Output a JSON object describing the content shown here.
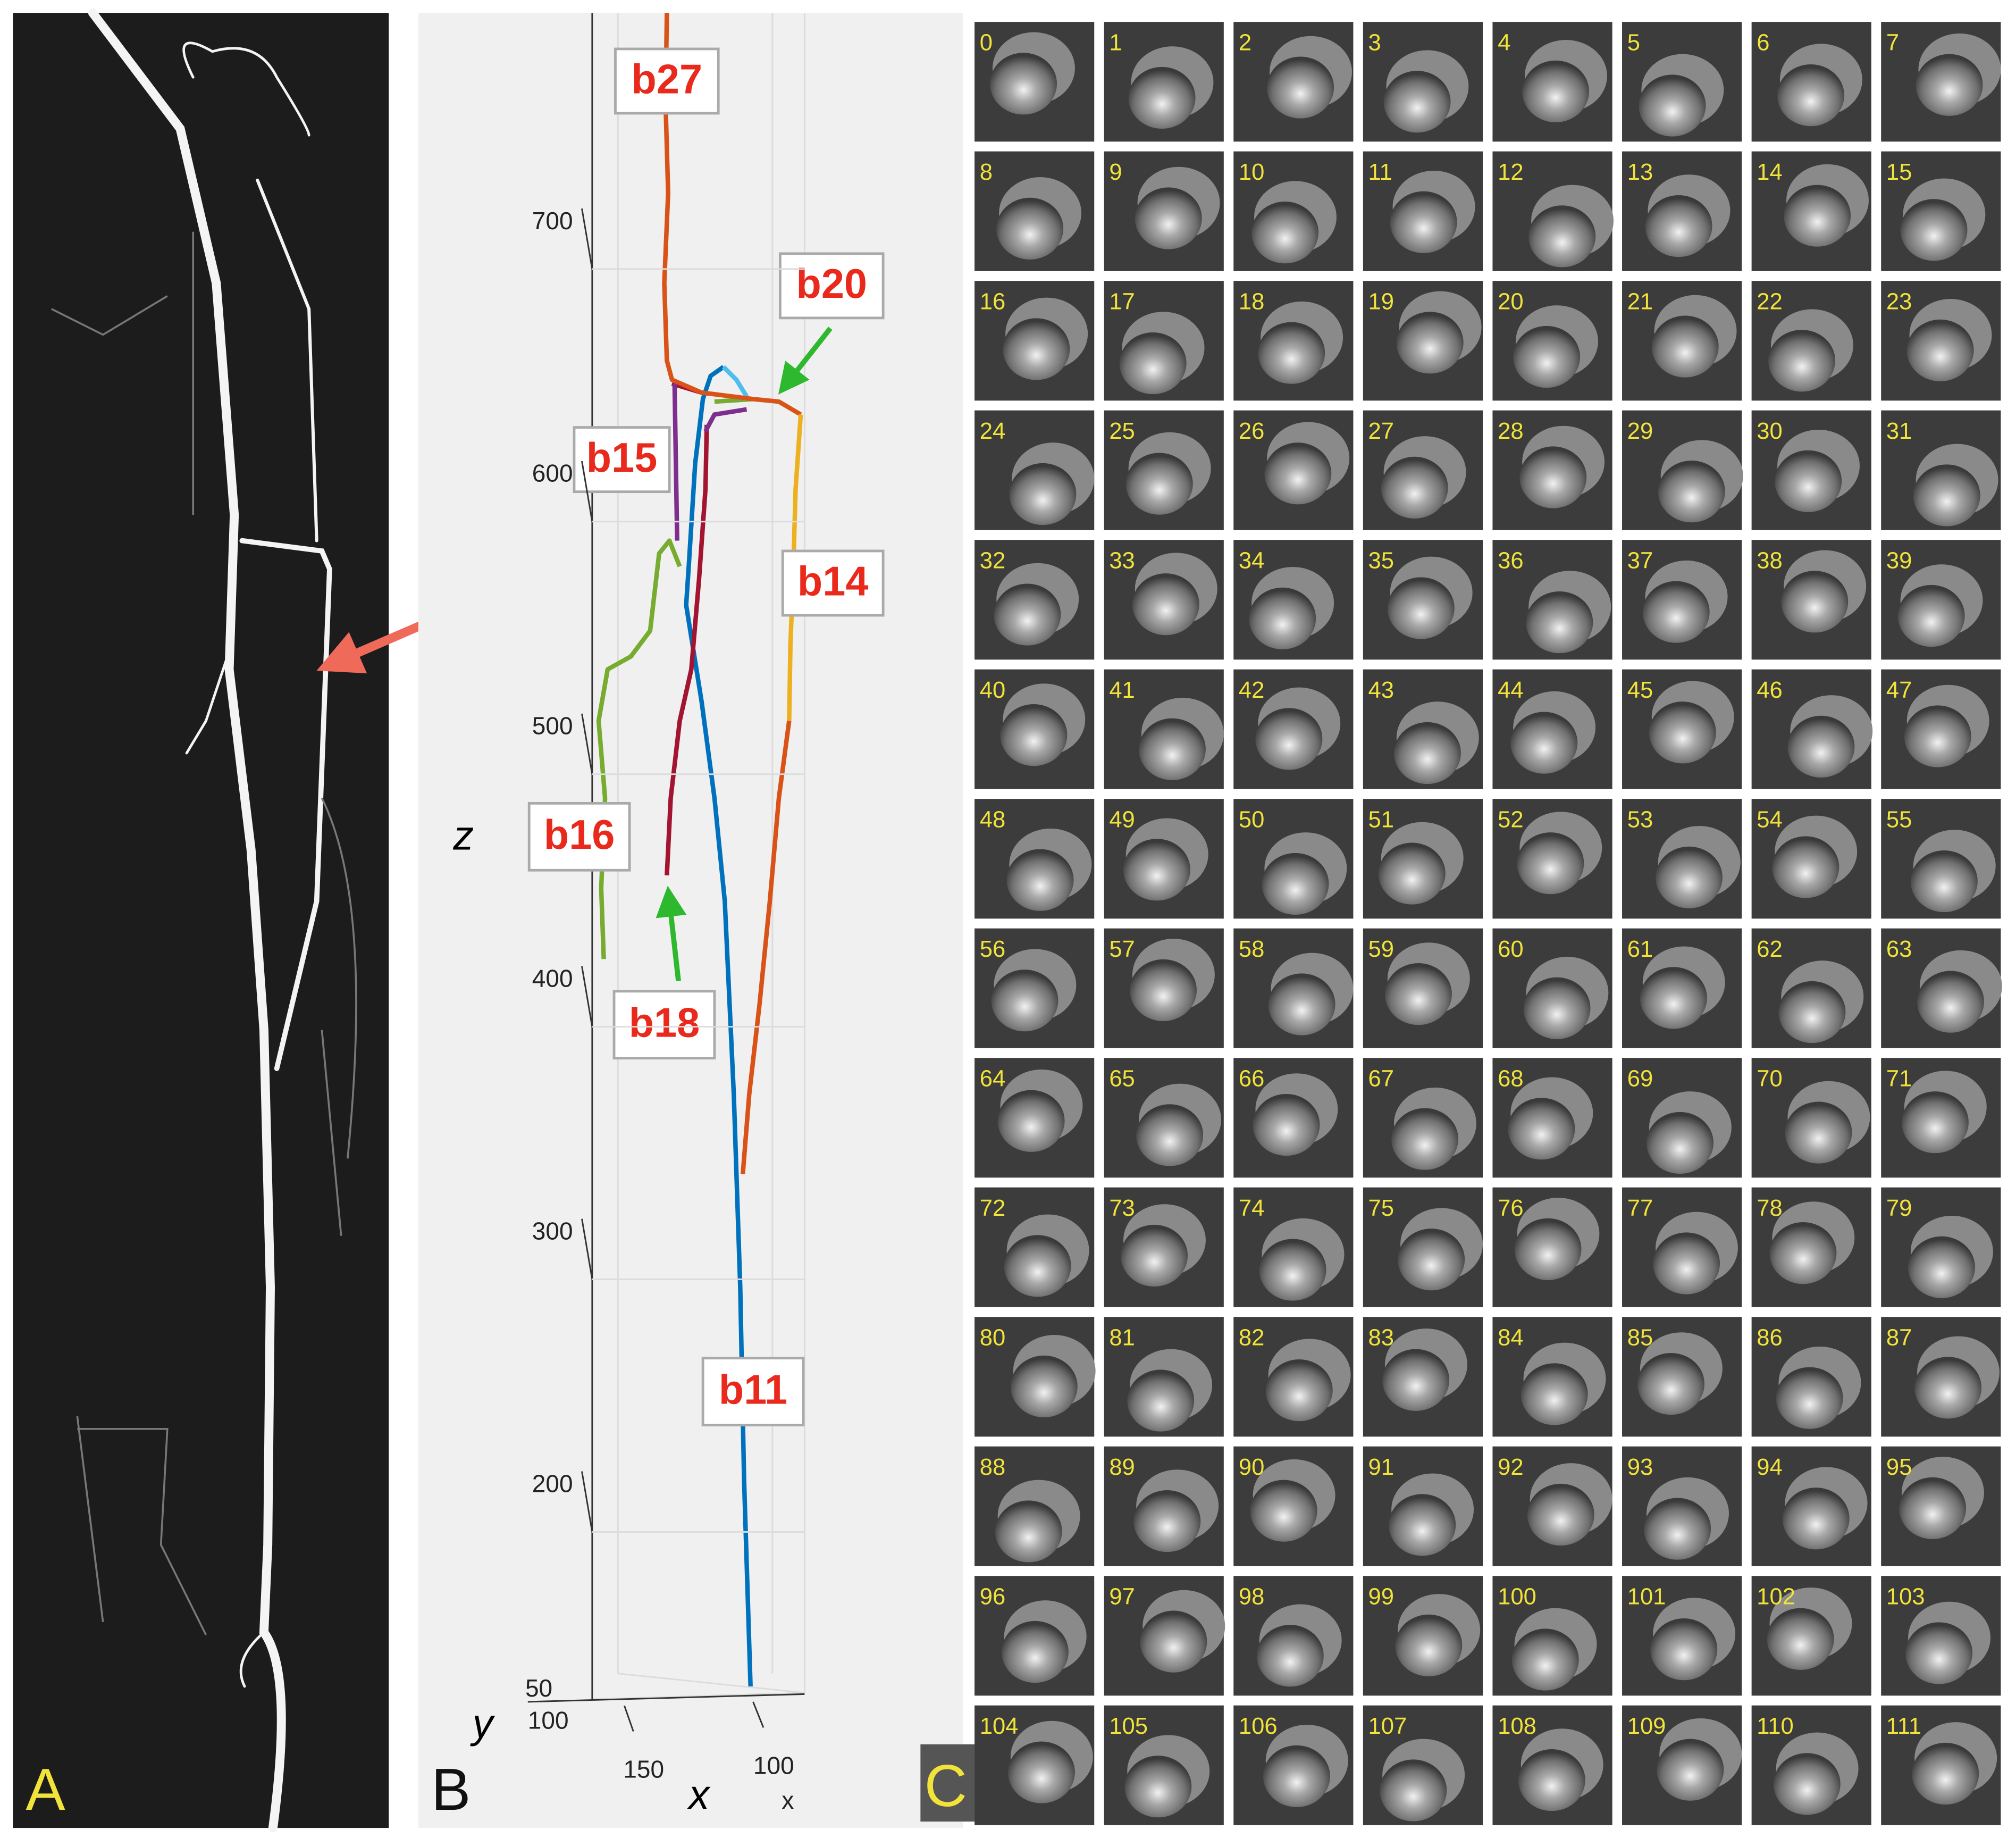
{
  "panels": {
    "a": {
      "label": "A"
    },
    "b": {
      "label": "B",
      "z_label": "z",
      "y_label": "y",
      "x_label": "x",
      "x_axis_end_label": "x",
      "z_ticks": [
        700,
        600,
        500,
        400,
        300,
        200
      ],
      "y_ticks": [
        50,
        100
      ],
      "x_ticks": [
        150,
        100
      ],
      "branches": [
        "b27",
        "b20",
        "b15",
        "b14",
        "b16",
        "b18",
        "b11"
      ]
    },
    "c": {
      "label": "C",
      "frames": [
        0,
        1,
        2,
        3,
        4,
        5,
        6,
        7,
        8,
        9,
        10,
        11,
        12,
        13,
        14,
        15,
        16,
        17,
        18,
        19,
        20,
        21,
        22,
        23,
        24,
        25,
        26,
        27,
        28,
        29,
        30,
        31,
        32,
        33,
        34,
        35,
        36,
        37,
        38,
        39,
        40,
        41,
        42,
        43,
        44,
        45,
        46,
        47,
        48,
        49,
        50,
        51,
        52,
        53,
        54,
        55,
        56,
        57,
        58,
        59,
        60,
        61,
        62,
        63,
        64,
        65,
        66,
        67,
        68,
        69,
        70,
        71,
        72,
        73,
        74,
        75,
        76,
        77,
        78,
        79,
        80,
        81,
        82,
        83,
        84,
        85,
        86,
        87,
        88,
        89,
        90,
        91,
        92,
        93,
        94,
        95,
        96,
        97,
        98,
        99,
        100,
        101,
        102,
        103,
        104,
        105,
        106,
        107,
        108,
        109,
        110,
        111
      ]
    }
  }
}
